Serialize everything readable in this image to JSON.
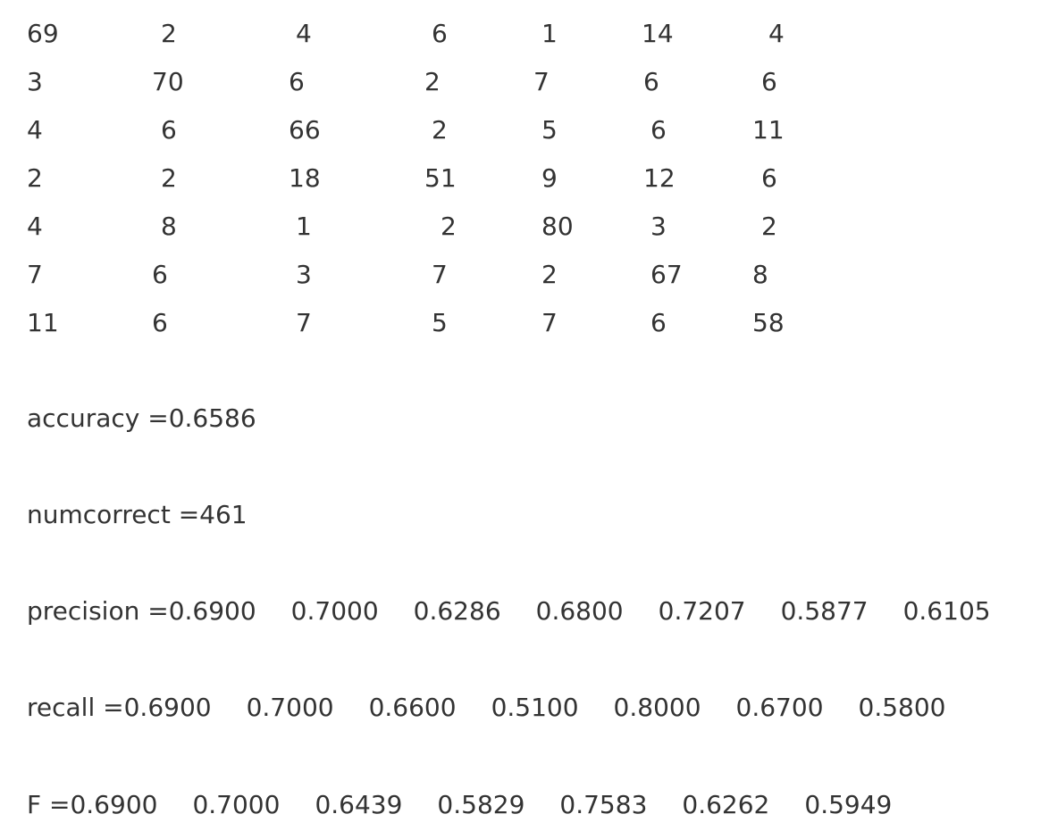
{
  "confusion_matrix": [
    [
      69,
      2,
      4,
      6,
      1,
      14,
      4
    ],
    [
      3,
      70,
      6,
      2,
      7,
      6,
      6
    ],
    [
      4,
      6,
      66,
      2,
      5,
      6,
      11
    ],
    [
      2,
      2,
      18,
      51,
      9,
      12,
      6
    ],
    [
      4,
      8,
      1,
      2,
      80,
      3,
      2
    ],
    [
      7,
      6,
      3,
      7,
      2,
      67,
      8
    ],
    [
      11,
      6,
      7,
      5,
      7,
      6,
      58
    ]
  ],
  "accuracy": {
    "label": "accuracy =",
    "value": "0.6586"
  },
  "numcorrect": {
    "label": "numcorrect =",
    "value": "461"
  },
  "precision": {
    "label": "precision =",
    "values": [
      "0.6900",
      "0.7000",
      "0.6286",
      "0.6800",
      "0.7207",
      "0.5877",
      "0.6105"
    ]
  },
  "recall": {
    "label": "recall =",
    "values": [
      "0.6900",
      "0.7000",
      "0.6600",
      "0.5100",
      "0.8000",
      "0.6700",
      "0.5800"
    ]
  },
  "F": {
    "label": "F =",
    "values": [
      "0.6900",
      "0.7000",
      "0.6439",
      "0.5829",
      "0.7583",
      "0.6262",
      "0.5949"
    ]
  }
}
